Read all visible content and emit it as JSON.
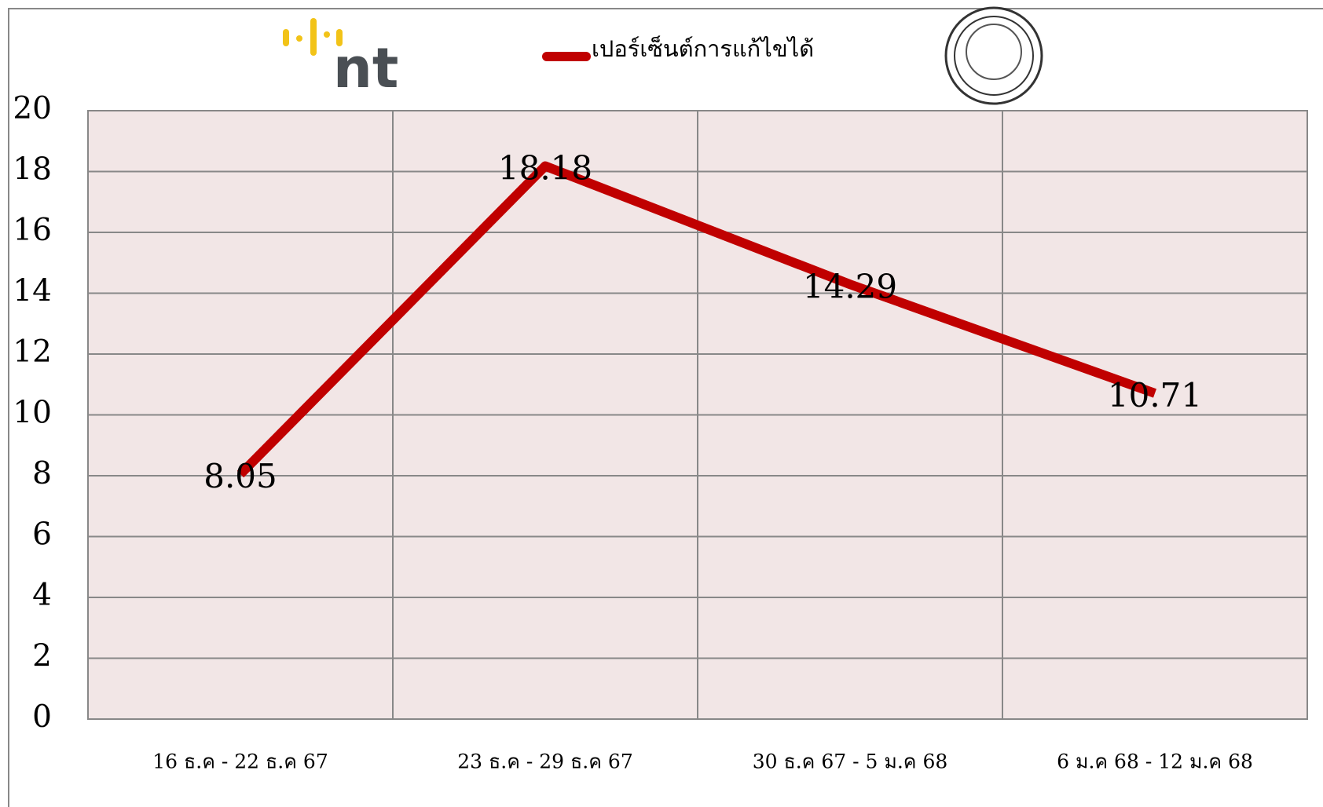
{
  "chart_data": {
    "type": "line",
    "categories": [
      "16 ธ.ค - 22 ธ.ค  67",
      "23 ธ.ค - 29 ธ.ค  67",
      "30 ธ.ค 67 - 5 ม.ค  68",
      "6 ม.ค 68 - 12 ม.ค  68"
    ],
    "series": [
      {
        "name": "เปอร์เซ็นต์การแก้ไขได้",
        "color": "#c00000",
        "values": [
          8.05,
          18.18,
          14.29,
          10.71
        ]
      }
    ],
    "ylim": [
      0,
      20
    ],
    "yticks": [
      0,
      2,
      4,
      6,
      8,
      10,
      12,
      14,
      16,
      18,
      20
    ],
    "grid": true,
    "data_labels": true
  },
  "logo": {
    "text": "nt"
  }
}
